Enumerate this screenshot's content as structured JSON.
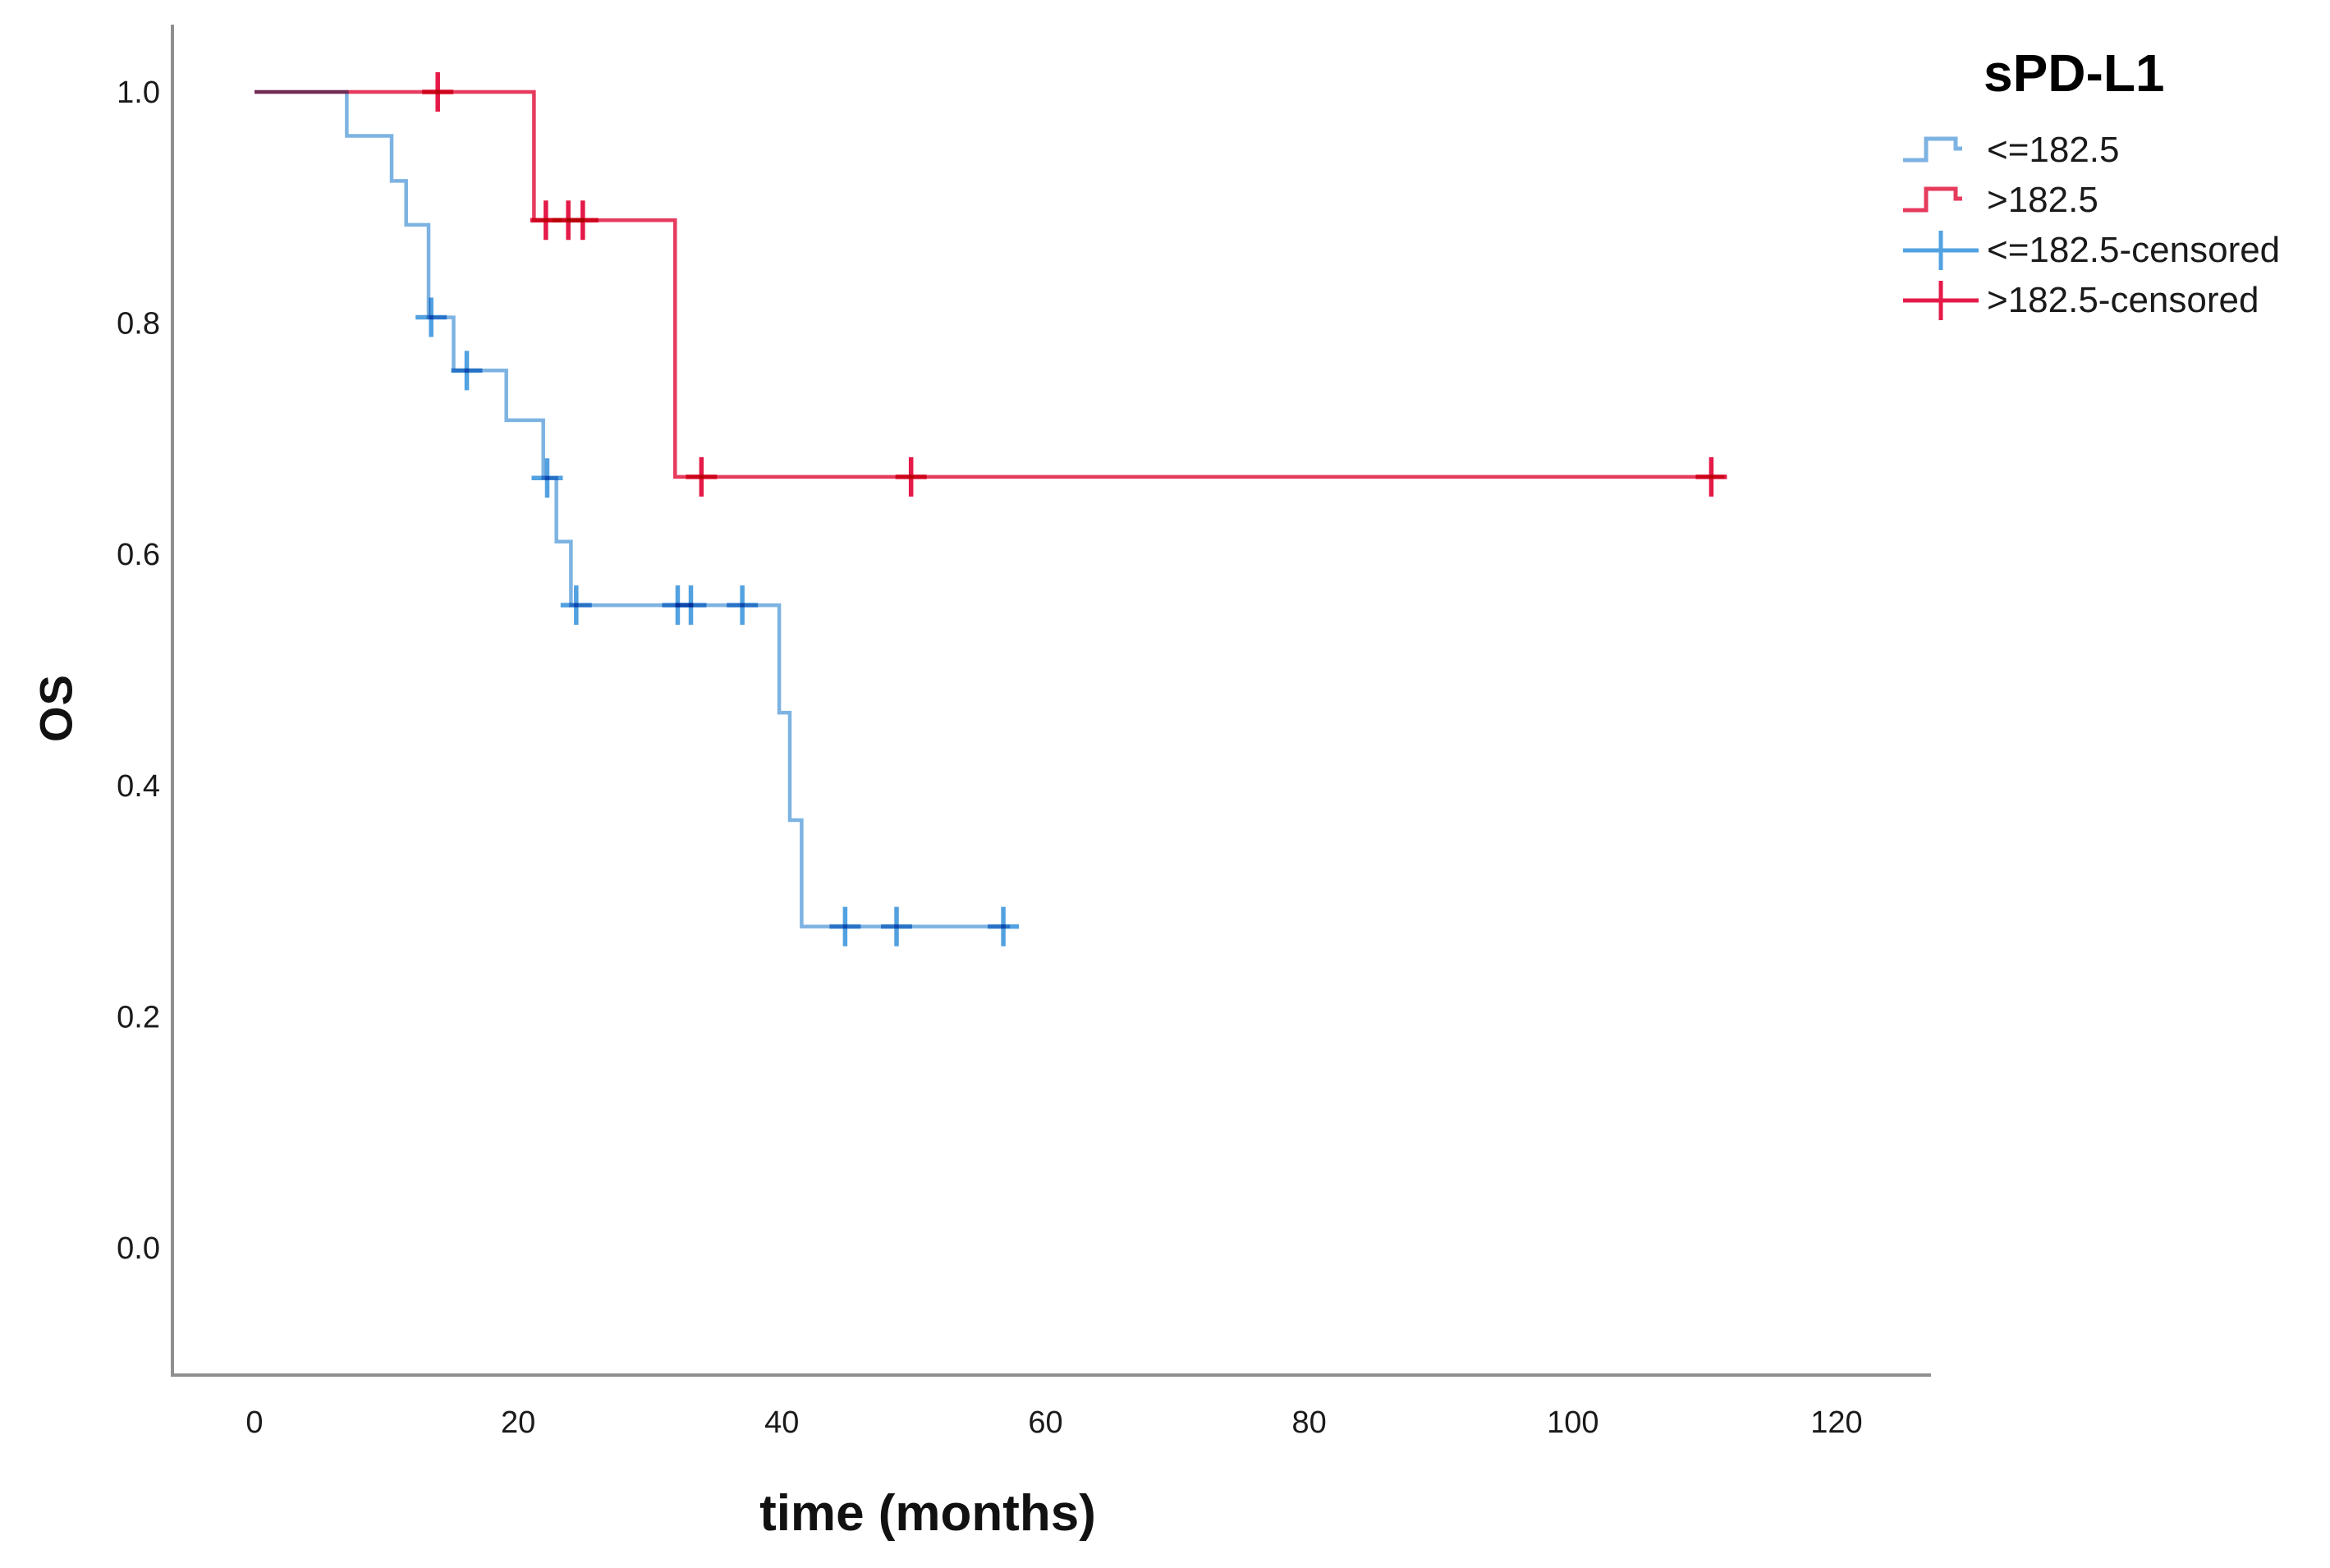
{
  "chart_data": {
    "type": "line",
    "subtype": "kaplan-meier-step",
    "title": "",
    "xlabel": "time (months)",
    "ylabel": "OS",
    "legend_title": "sPD-L1",
    "legend_position": "top-right",
    "grid": false,
    "xlim": [
      0,
      127
    ],
    "ylim": [
      0.0,
      1.0
    ],
    "x_tick_values": [
      0,
      20,
      40,
      60,
      80,
      100,
      120
    ],
    "x_tick_labels": [
      "0",
      "20",
      "40",
      "60",
      "80",
      "100",
      "120"
    ],
    "y_tick_values": [
      0.0,
      0.2,
      0.4,
      0.6,
      0.8,
      1.0
    ],
    "y_tick_labels": [
      "0.0",
      "0.2",
      "0.4",
      "0.6",
      "0.8",
      "1.0"
    ],
    "colors": {
      "blue_line": "#7db3e2",
      "blue_censor": "#52a1e0",
      "red_line": "#e63b5d",
      "red_censor": "#e51a48",
      "axis": "#8f8f8f",
      "text": "#1a1a1a"
    },
    "series": [
      {
        "key": "low",
        "name": "<=182.5",
        "color_key": "blue_line",
        "censor_color_key": "blue_censor",
        "steps": [
          [
            0,
            1.0
          ],
          [
            7,
            1.0
          ],
          [
            7,
            0.962
          ],
          [
            10.4,
            0.962
          ],
          [
            10.4,
            0.923
          ],
          [
            11.5,
            0.923
          ],
          [
            11.5,
            0.885
          ],
          [
            13.2,
            0.885
          ],
          [
            13.2,
            0.805
          ],
          [
            15.1,
            0.805
          ],
          [
            15.1,
            0.759
          ],
          [
            19.1,
            0.759
          ],
          [
            19.1,
            0.716
          ],
          [
            21.9,
            0.716
          ],
          [
            21.9,
            0.666
          ],
          [
            22.9,
            0.666
          ],
          [
            22.9,
            0.611
          ],
          [
            24.0,
            0.611
          ],
          [
            24.0,
            0.556
          ],
          [
            39.8,
            0.556
          ],
          [
            39.8,
            0.463
          ],
          [
            40.6,
            0.463
          ],
          [
            40.6,
            0.37
          ],
          [
            41.5,
            0.37
          ],
          [
            41.5,
            0.278
          ],
          [
            57.3,
            0.278
          ]
        ],
        "censored": [
          [
            13.4,
            0.805
          ],
          [
            16.1,
            0.759
          ],
          [
            22.2,
            0.666
          ],
          [
            24.4,
            0.556
          ],
          [
            32.1,
            0.556
          ],
          [
            33.1,
            0.556
          ],
          [
            37.0,
            0.556
          ],
          [
            44.8,
            0.278
          ],
          [
            48.7,
            0.278
          ],
          [
            56.8,
            0.278
          ]
        ]
      },
      {
        "key": "high",
        "name": ">182.5",
        "color_key": "red_line",
        "censor_color_key": "red_censor",
        "steps": [
          [
            0,
            1.0
          ],
          [
            21.2,
            1.0
          ],
          [
            21.2,
            0.889
          ],
          [
            31.9,
            0.889
          ],
          [
            31.9,
            0.667
          ],
          [
            111.5,
            0.667
          ]
        ],
        "censored": [
          [
            13.9,
            1.0
          ],
          [
            22.1,
            0.889
          ],
          [
            23.8,
            0.889
          ],
          [
            24.9,
            0.889
          ],
          [
            33.9,
            0.667
          ],
          [
            49.8,
            0.667
          ],
          [
            110.5,
            0.667
          ]
        ]
      }
    ],
    "legend": [
      {
        "label": "<=182.5",
        "marker": "step",
        "color_key": "blue_line"
      },
      {
        "label": ">182.5",
        "marker": "step",
        "color_key": "red_line"
      },
      {
        "label": "<=182.5-censored",
        "marker": "plus",
        "color_key": "blue_censor"
      },
      {
        "label": ">182.5-censored",
        "marker": "plus",
        "color_key": "red_censor"
      }
    ]
  }
}
